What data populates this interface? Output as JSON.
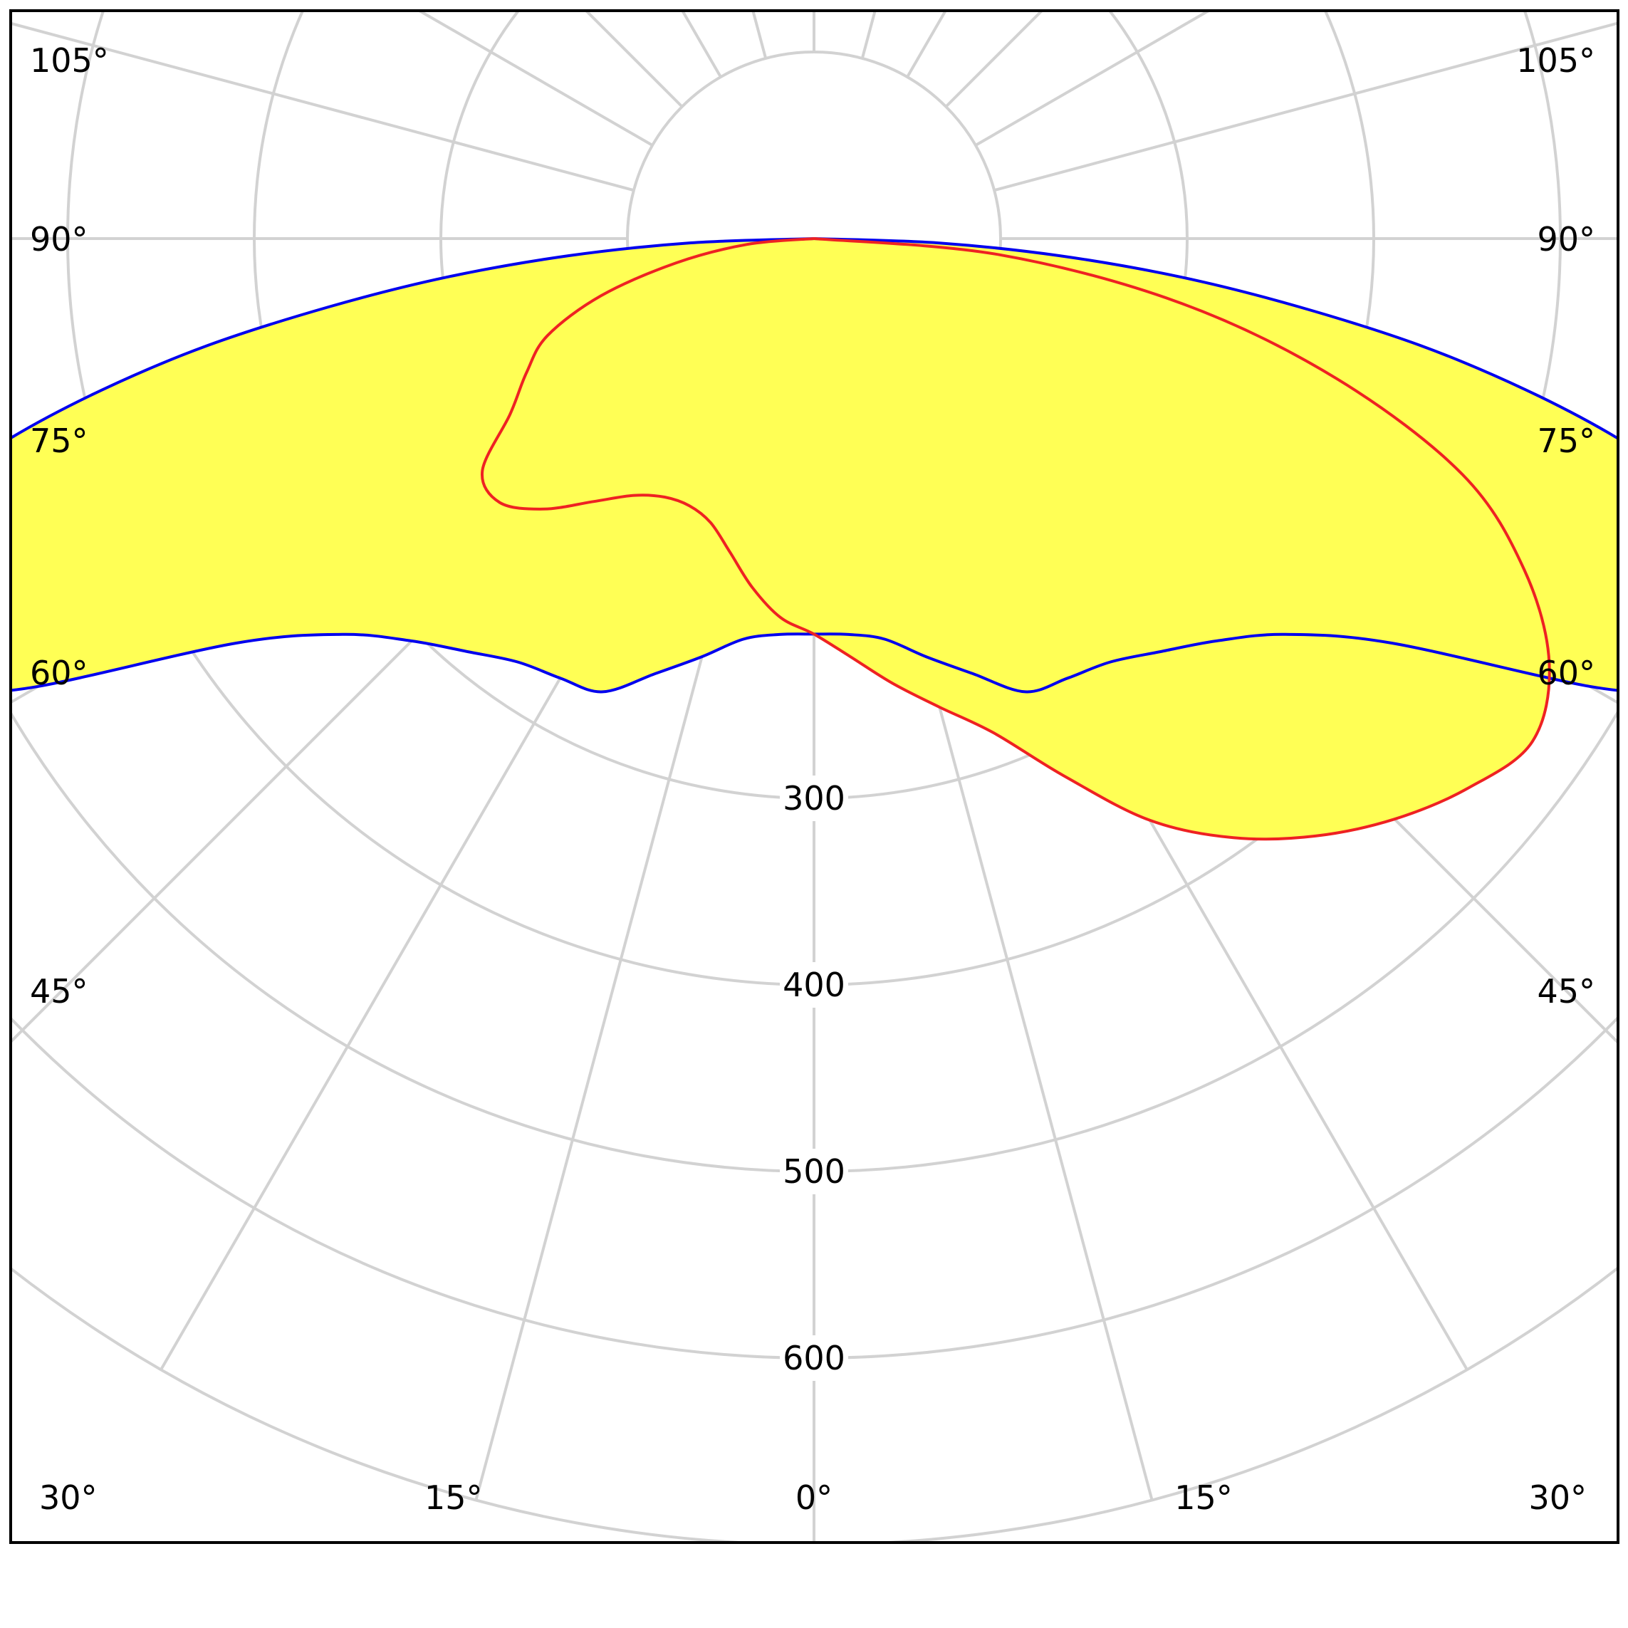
{
  "chart_data": {
    "type": "polar",
    "title": "",
    "colors": {
      "grid": "#d2d2d2",
      "frame": "#000000",
      "fill": "#ffff55",
      "series_c0_c180": "#0000ee",
      "series_c90_c270": "#ee2222"
    },
    "radial_axis": {
      "range": [
        0,
        700
      ],
      "ticks": [
        100,
        200,
        300,
        400,
        500,
        600,
        700
      ],
      "labeled_ticks": [
        "300",
        "400",
        "500",
        "600"
      ]
    },
    "angle_labels": {
      "left": [
        "105°",
        "90°",
        "75°",
        "60°",
        "45°",
        "30°",
        "15°"
      ],
      "center": "0°",
      "right": [
        "15°",
        "30°",
        "45°",
        "60°",
        "75°",
        "90°",
        "105°"
      ]
    },
    "spokes_deg": [
      0,
      15,
      30,
      45,
      60,
      75,
      90,
      105,
      120,
      135,
      150,
      165,
      180
    ],
    "series": [
      {
        "color_key": "series_c0_c180",
        "angles": [
          0,
          5,
          10,
          15,
          20,
          25,
          30,
          35,
          40,
          45,
          50,
          55,
          60,
          62,
          64,
          66,
          68,
          70,
          72,
          74,
          76,
          78,
          80,
          82,
          84,
          86,
          88,
          90
        ],
        "values": [
          212,
          213,
          218,
          232,
          248,
          268,
          272,
          277,
          289,
          305,
          330,
          378,
          480,
          515,
          540,
          552,
          550,
          540,
          520,
          490,
          445,
          390,
          330,
          262,
          198,
          132,
          66,
          0
        ],
        "symmetric": true
      },
      {
        "color_key": "series_c90_c270",
        "angles": [
          -90,
          -85,
          -80,
          -75,
          -70,
          -65,
          -60,
          -55,
          -50,
          -45,
          -40,
          -35,
          -30,
          -25,
          -20,
          -15,
          -10,
          -5,
          0,
          5,
          10,
          15,
          20,
          25,
          30,
          35,
          40,
          45,
          50,
          55,
          60,
          65,
          70,
          75,
          80,
          85,
          90
        ],
        "values": [
          0,
          36,
          75,
          118,
          152,
          170,
          188,
          217,
          220,
          205,
          184,
          168,
          160,
          158,
          162,
          174,
          190,
          204,
          212,
          225,
          242,
          260,
          282,
          318,
          360,
          392,
          418,
          440,
          458,
          470,
          455,
          420,
          370,
          290,
          200,
          100,
          0
        ]
      }
    ]
  }
}
